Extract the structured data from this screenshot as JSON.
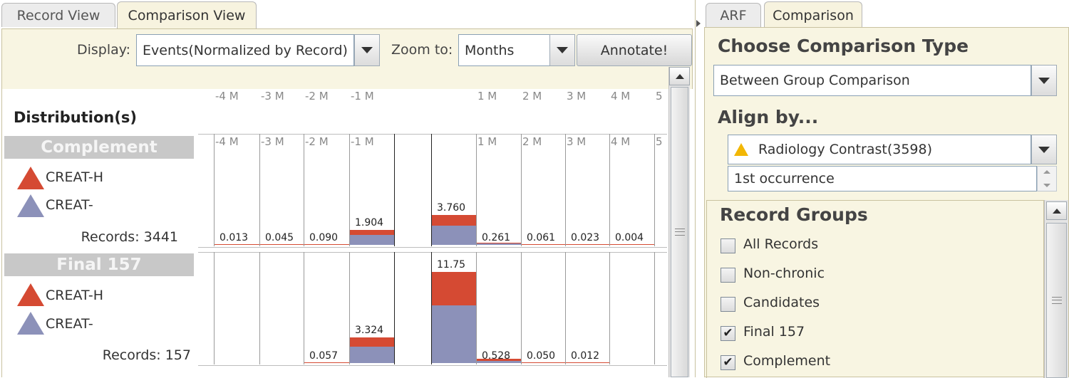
{
  "left_tabs": [
    {
      "label": "Record View",
      "active": false
    },
    {
      "label": "Comparison View",
      "active": true
    }
  ],
  "right_tabs": [
    {
      "label": "ARF",
      "active": false
    },
    {
      "label": "Comparison",
      "active": true
    }
  ],
  "toolbar": {
    "display_label": "Display:",
    "display_value": "Events(Normalized by Record)",
    "zoom_label": "Zoom to:",
    "zoom_value": "Months",
    "annotate_label": "Annotate!"
  },
  "chart_data": {
    "type": "bar",
    "title": "Distribution(s)",
    "x_tick_labels": [
      "-4 M",
      "-3 M",
      "-2 M",
      "-1 M",
      "1 M",
      "2 M",
      "3 M",
      "4 M",
      "5"
    ],
    "series_legend": [
      {
        "name": "CREAT-H",
        "color": "#d54a33"
      },
      {
        "name": "CREAT-",
        "color": "#8c91b9"
      }
    ],
    "groups": [
      {
        "name": "Complement",
        "records_label": "Records: 3441",
        "values": [
          {
            "label": "0.013",
            "total": 0.013
          },
          {
            "label": "0.045",
            "total": 0.045
          },
          {
            "label": "0.090",
            "total": 0.09
          },
          {
            "label": "1.904",
            "total": 1.904
          },
          {
            "label": "3.760",
            "total": 3.76
          },
          {
            "label": "0.261",
            "total": 0.261
          },
          {
            "label": "0.061",
            "total": 0.061
          },
          {
            "label": "0.023",
            "total": 0.023
          },
          {
            "label": "0.004",
            "total": 0.004
          }
        ]
      },
      {
        "name": "Final 157",
        "records_label": "Records: 157",
        "values": [
          {
            "label": "0.057",
            "total": 0.057
          },
          {
            "label": "3.324",
            "total": 3.324
          },
          {
            "label": "11.75",
            "total": 11.75
          },
          {
            "label": "0.528",
            "total": 0.528
          },
          {
            "label": "0.050",
            "total": 0.05
          },
          {
            "label": "0.012",
            "total": 0.012
          }
        ]
      }
    ]
  },
  "right_panel": {
    "comparison_type_heading": "Choose Comparison Type",
    "comparison_type_value": "Between Group Comparison",
    "align_heading": "Align by...",
    "align_value": "Radiology Contrast(3598)",
    "occurrence_value": "1st occurrence",
    "record_groups_heading": "Record Groups",
    "record_groups": [
      {
        "label": "All Records",
        "checked": false
      },
      {
        "label": "Non-chronic",
        "checked": false
      },
      {
        "label": "Candidates",
        "checked": false
      },
      {
        "label": "Final 157",
        "checked": true
      },
      {
        "label": "Complement",
        "checked": true
      }
    ]
  },
  "colors": {
    "creat_h": "#d54a33",
    "creat": "#8c91b9",
    "panel_bg": "#f8f5e2",
    "group_header_bg": "#c8c8c8"
  }
}
